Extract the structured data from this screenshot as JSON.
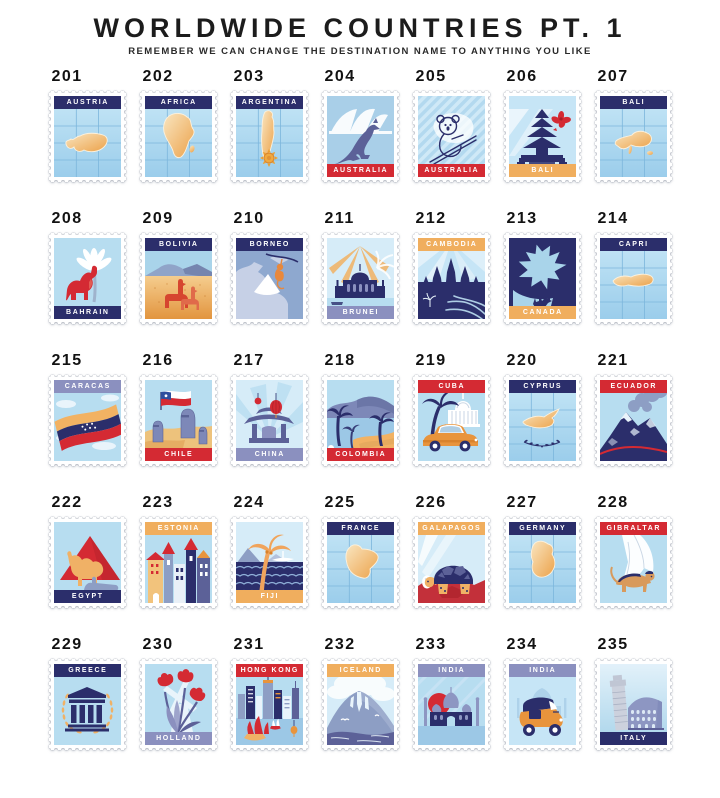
{
  "header": {
    "title": "WORLDWIDE COUNTRIES PT. 1",
    "subtitle": "REMEMBER WE CAN CHANGE THE DESTINATION NAME TO ANYTHING YOU LIKE"
  },
  "colors": {
    "navy": "#2b2e6b",
    "red": "#d42a33",
    "orange": "#f0ae5e",
    "lavender": "#8b90bf",
    "label_text": "#ffffff",
    "panel_blue": "#a9d4ea",
    "map_tan": "#efb266",
    "page_bg": "#ffffff"
  },
  "stamps": [
    {
      "number": "201",
      "name": "AUSTRIA",
      "label_position": "top",
      "label_color": "navy",
      "art": "map-austria"
    },
    {
      "number": "202",
      "name": "AFRICA",
      "label_position": "top",
      "label_color": "navy",
      "art": "map-africa"
    },
    {
      "number": "203",
      "name": "ARGENTINA",
      "label_position": "top",
      "label_color": "navy",
      "art": "map-argentina"
    },
    {
      "number": "204",
      "name": "AUSTRALIA",
      "label_position": "bottom",
      "label_color": "red",
      "art": "kangaroo-opera-house"
    },
    {
      "number": "205",
      "name": "AUSTRALIA",
      "label_position": "bottom",
      "label_color": "red",
      "art": "koala"
    },
    {
      "number": "206",
      "name": "BALI",
      "label_position": "bottom",
      "label_color": "orange",
      "art": "bali-temple"
    },
    {
      "number": "207",
      "name": "BALI",
      "label_position": "top",
      "label_color": "navy",
      "art": "map-bali"
    },
    {
      "number": "208",
      "name": "BAHRAIN",
      "label_position": "bottom",
      "label_color": "navy",
      "art": "camel-palm"
    },
    {
      "number": "209",
      "name": "BOLIVIA",
      "label_position": "top",
      "label_color": "navy",
      "art": "llamas"
    },
    {
      "number": "210",
      "name": "BORNEO",
      "label_position": "top",
      "label_color": "navy",
      "art": "borneo-orangutan"
    },
    {
      "number": "211",
      "name": "BRUNEI",
      "label_position": "bottom",
      "label_color": "lavender",
      "art": "mosque"
    },
    {
      "number": "212",
      "name": "CAMBODIA",
      "label_position": "top",
      "label_color": "orange",
      "art": "angkor-wat"
    },
    {
      "number": "213",
      "name": "CANADA",
      "label_position": "bottom",
      "label_color": "orange",
      "art": "maple-leaf-moose"
    },
    {
      "number": "214",
      "name": "CAPRI",
      "label_position": "top",
      "label_color": "navy",
      "art": "map-capri"
    },
    {
      "number": "215",
      "name": "CARACAS",
      "label_position": "top",
      "label_color": "lavender",
      "art": "venezuela-flag"
    },
    {
      "number": "216",
      "name": "CHILE",
      "label_position": "bottom",
      "label_color": "red",
      "art": "moai-flag"
    },
    {
      "number": "217",
      "name": "CHINA",
      "label_position": "bottom",
      "label_color": "lavender",
      "art": "pagoda-lanterns"
    },
    {
      "number": "218",
      "name": "COLOMBIA",
      "label_position": "bottom",
      "label_color": "red",
      "art": "tropical-coast"
    },
    {
      "number": "219",
      "name": "CUBA",
      "label_position": "top",
      "label_color": "red",
      "art": "classic-car-capitol"
    },
    {
      "number": "220",
      "name": "CYPRUS",
      "label_position": "top",
      "label_color": "navy",
      "art": "map-cyprus"
    },
    {
      "number": "221",
      "name": "ECUADOR",
      "label_position": "top",
      "label_color": "red",
      "art": "volcano"
    },
    {
      "number": "222",
      "name": "EGYPT",
      "label_position": "bottom",
      "label_color": "navy",
      "art": "camel-pyramid-sphinx"
    },
    {
      "number": "223",
      "name": "ESTONIA",
      "label_position": "top",
      "label_color": "orange",
      "art": "tallinn-old-town"
    },
    {
      "number": "224",
      "name": "FIJI",
      "label_position": "bottom",
      "label_color": "orange",
      "art": "palm-beach-waves"
    },
    {
      "number": "225",
      "name": "FRANCE",
      "label_position": "top",
      "label_color": "navy",
      "art": "map-france"
    },
    {
      "number": "226",
      "name": "GALAPAGOS",
      "label_position": "top",
      "label_color": "orange",
      "art": "giant-tortoise"
    },
    {
      "number": "227",
      "name": "GERMANY",
      "label_position": "top",
      "label_color": "navy",
      "art": "map-germany"
    },
    {
      "number": "228",
      "name": "GIBRALTAR",
      "label_position": "top",
      "label_color": "red",
      "art": "macaque-rock"
    },
    {
      "number": "229",
      "name": "GREECE",
      "label_position": "top",
      "label_color": "navy",
      "art": "parthenon-wreath"
    },
    {
      "number": "230",
      "name": "HOLLAND",
      "label_position": "bottom",
      "label_color": "lavender",
      "art": "tulips-windmill"
    },
    {
      "number": "231",
      "name": "HONG KONG",
      "label_position": "top",
      "label_color": "red",
      "art": "skyline-junks"
    },
    {
      "number": "232",
      "name": "ICELAND",
      "label_position": "top",
      "label_color": "orange",
      "art": "volcano-glacier"
    },
    {
      "number": "233",
      "name": "INDIA",
      "label_position": "top",
      "label_color": "lavender",
      "art": "taj-mahal-sun"
    },
    {
      "number": "234",
      "name": "INDIA",
      "label_position": "top",
      "label_color": "lavender",
      "art": "auto-rickshaw"
    },
    {
      "number": "235",
      "name": "ITALY",
      "label_position": "bottom",
      "label_color": "navy",
      "art": "pisa-colosseum"
    }
  ]
}
